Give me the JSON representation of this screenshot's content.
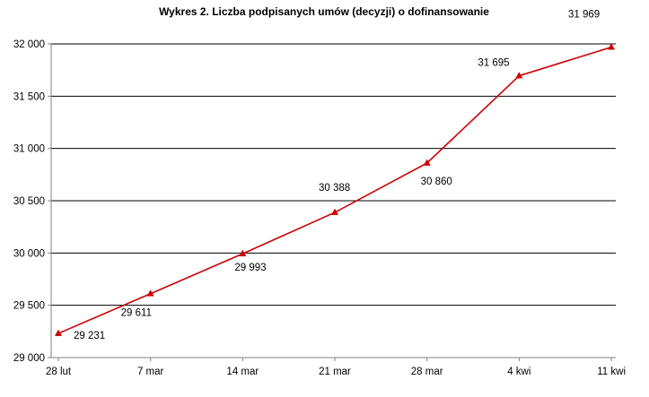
{
  "chart_data": {
    "type": "line",
    "title": "Wykres 2. Liczba podpisanych umów (decyzji) o dofinansowanie",
    "xlabel": "",
    "ylabel": "",
    "categories": [
      "28 lut",
      "7 mar",
      "14 mar",
      "21 mar",
      "28 mar",
      "4 kwi",
      "11 kwi"
    ],
    "series": [
      {
        "values": [
          29231,
          29611,
          29993,
          30388,
          30860,
          31695,
          31969
        ],
        "data_labels": [
          "29 231",
          "29 611",
          "29 993",
          "30 388",
          "30 860",
          "31 695",
          "31 969"
        ],
        "color": "#cc0000",
        "marker": "triangle"
      }
    ],
    "ylim": [
      29000,
      32000
    ],
    "yticks": [
      29000,
      29500,
      30000,
      30500,
      31000,
      31500,
      32000
    ],
    "ytick_labels": [
      "29 000",
      "29 500",
      "30 000",
      "30 500",
      "31 000",
      "31 500",
      "32 000"
    ],
    "grid": "horizontal",
    "legend": "none",
    "gridline_color": "#000000",
    "axis_color": "#808080"
  }
}
